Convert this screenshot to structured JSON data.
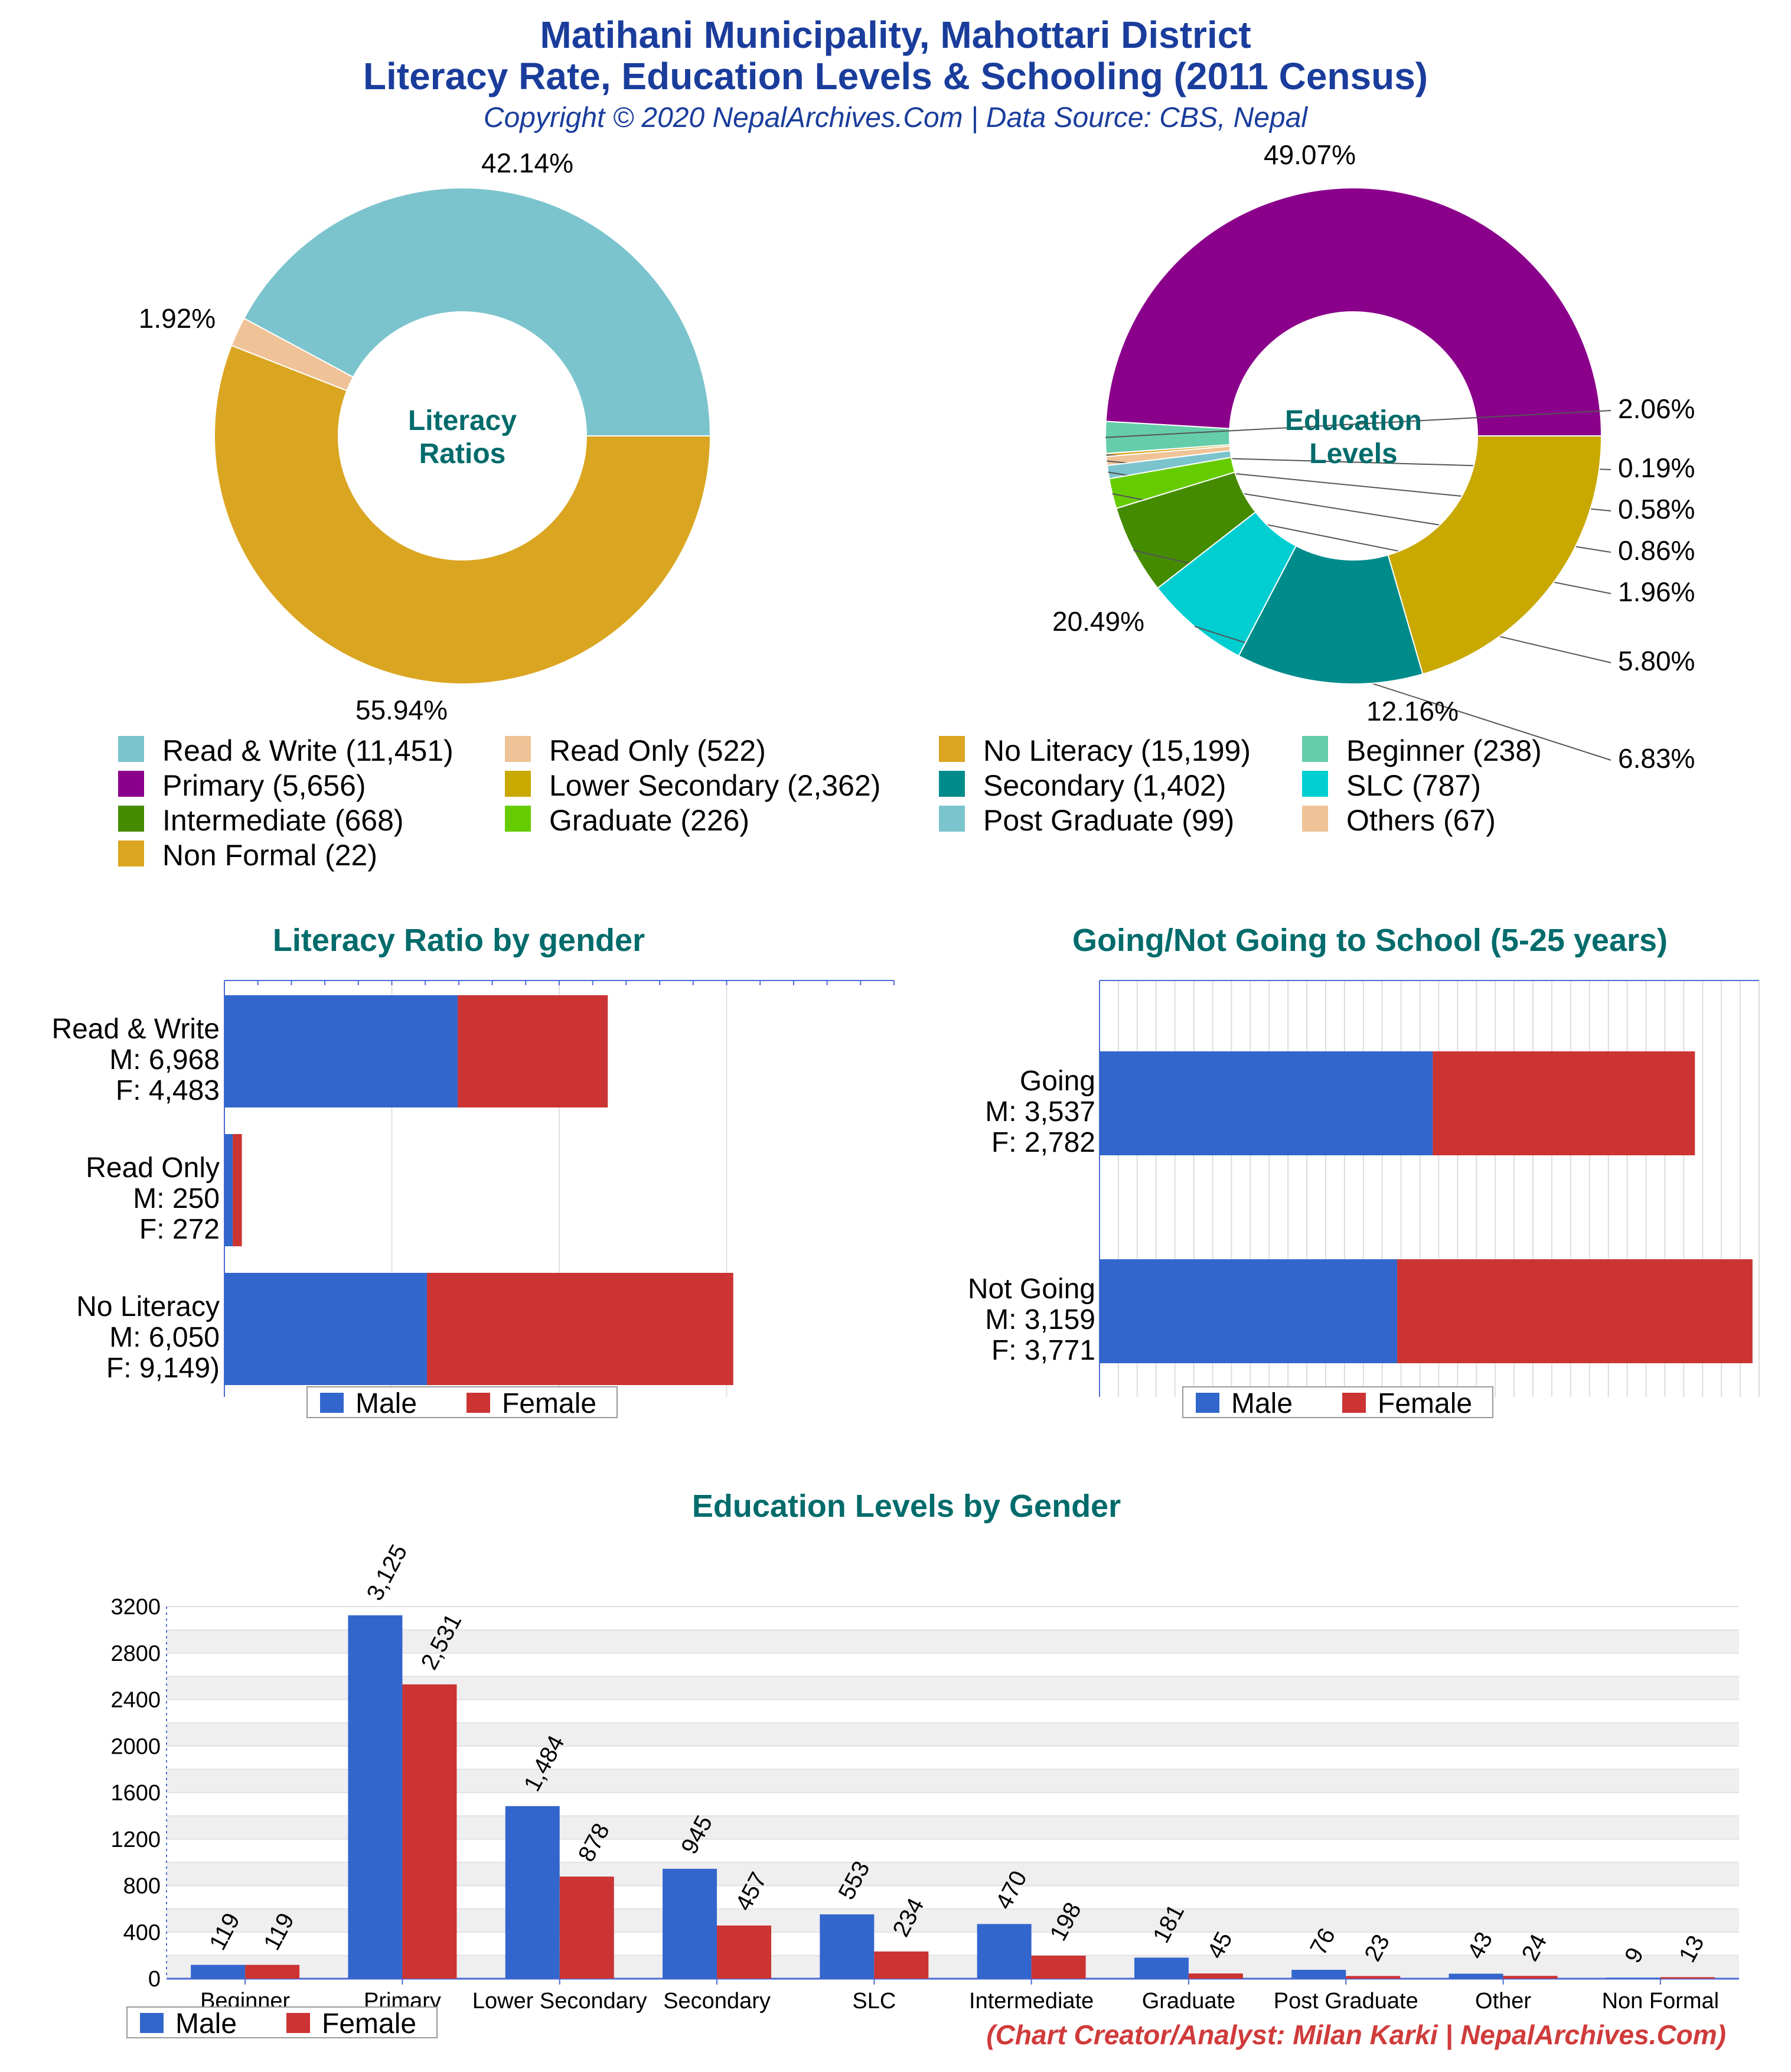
{
  "header": {
    "title_line1": "Matihani Municipality, Mahottari District",
    "title_line2": "Literacy Rate, Education Levels & Schooling (2011 Census)",
    "subtitle": "Copyright © 2020 NepalArchives.Com | Data Source: CBS, Nepal"
  },
  "footer": {
    "credit": "(Chart Creator/Analyst: Milan Karki | NepalArchives.Com)"
  },
  "chart_data": [
    {
      "type": "pie",
      "center_label": [
        "Literacy",
        "Ratios"
      ],
      "slices": [
        {
          "name": "Read & Write",
          "value": 11451,
          "percent_label": "42.14%",
          "color": "#7cc4cd"
        },
        {
          "name": "Read Only",
          "value": 522,
          "percent_label": "1.92%",
          "color": "#efc397"
        },
        {
          "name": "No Literacy",
          "value": 15199,
          "percent_label": "55.94%",
          "color": "#daa520"
        }
      ]
    },
    {
      "type": "pie",
      "center_label": [
        "Education",
        "Levels"
      ],
      "slices": [
        {
          "name": "Primary",
          "value": 5656,
          "percent_label": "49.07%",
          "color": "#8b008b"
        },
        {
          "name": "Beginner",
          "value": 238,
          "percent_label": "2.06%",
          "color": "#66cdaa"
        },
        {
          "name": "Non Formal",
          "value": 22,
          "percent_label": "0.19%",
          "color": "#daa520"
        },
        {
          "name": "Others",
          "value": 67,
          "percent_label": "0.58%",
          "color": "#efc397"
        },
        {
          "name": "Post Graduate",
          "value": 99,
          "percent_label": "0.86%",
          "color": "#7cc4cd"
        },
        {
          "name": "Graduate",
          "value": 226,
          "percent_label": "1.96%",
          "color": "#66cc00"
        },
        {
          "name": "Intermediate",
          "value": 668,
          "percent_label": "5.80%",
          "color": "#458b00"
        },
        {
          "name": "SLC",
          "value": 787,
          "percent_label": "6.83%",
          "color": "#00ced1"
        },
        {
          "name": "Secondary",
          "value": 1402,
          "percent_label": "12.16%",
          "color": "#008b8b"
        },
        {
          "name": "Lower Secondary",
          "value": 2362,
          "percent_label": "20.49%",
          "color": "#c9a800"
        }
      ]
    },
    {
      "type": "bar",
      "orientation": "horizontal",
      "stacked": true,
      "title": "Literacy Ratio by gender",
      "categories": [
        [
          "Read & Write",
          "M: 6,968",
          "F: 4,483"
        ],
        [
          "Read Only",
          "M: 250",
          "F: 272"
        ],
        [
          "No Literacy",
          "M: 6,050",
          "F: 9,149)"
        ]
      ],
      "series": [
        {
          "name": "Male",
          "values": [
            6968,
            250,
            6050
          ],
          "color": "#3366cc"
        },
        {
          "name": "Female",
          "values": [
            4483,
            272,
            9149
          ],
          "color": "#cc3333"
        }
      ],
      "xlim": [
        0,
        20000
      ]
    },
    {
      "type": "bar",
      "orientation": "horizontal",
      "stacked": true,
      "title": "Going/Not Going to School (5-25 years)",
      "categories": [
        [
          "Going",
          "M: 3,537",
          "F: 2,782"
        ],
        [
          "Not Going",
          "M: 3,159",
          "F: 3,771"
        ]
      ],
      "series": [
        {
          "name": "Male",
          "values": [
            3537,
            3159
          ],
          "color": "#3366cc"
        },
        {
          "name": "Female",
          "values": [
            2782,
            3771
          ],
          "color": "#cc3333"
        }
      ],
      "xlim": [
        0,
        7000
      ]
    },
    {
      "type": "bar",
      "title": "Education Levels by Gender",
      "categories": [
        "Beginner",
        "Primary",
        "Lower Secondary",
        "Secondary",
        "SLC",
        "Intermediate",
        "Graduate",
        "Post Graduate",
        "Other",
        "Non Formal"
      ],
      "series": [
        {
          "name": "Male",
          "values": [
            119,
            3125,
            1484,
            945,
            553,
            470,
            181,
            76,
            43,
            9
          ],
          "labels": [
            "119",
            "3,125",
            "1,484",
            "945",
            "553",
            "470",
            "181",
            "76",
            "43",
            "9"
          ],
          "color": "#3366cc"
        },
        {
          "name": "Female",
          "values": [
            119,
            2531,
            878,
            457,
            234,
            198,
            45,
            23,
            24,
            13
          ],
          "labels": [
            "119",
            "2,531",
            "878",
            "457",
            "234",
            "198",
            "45",
            "23",
            "24",
            "13"
          ],
          "color": "#cc3333"
        }
      ],
      "ylim": [
        0,
        3200
      ],
      "yticks": [
        "0",
        "400",
        "800",
        "1200",
        "1600",
        "2000",
        "2400",
        "2800",
        "3200"
      ]
    }
  ],
  "legends": {
    "pies": [
      [
        {
          "text": "Read & Write (11,451)",
          "color": "#7cc4cd"
        },
        {
          "text": "Read Only (522)",
          "color": "#efc397"
        },
        {
          "text": "No Literacy (15,199)",
          "color": "#daa520"
        },
        {
          "text": "Beginner (238)",
          "color": "#66cdaa"
        }
      ],
      [
        {
          "text": "Primary (5,656)",
          "color": "#8b008b"
        },
        {
          "text": "Lower Secondary (2,362)",
          "color": "#c9a800"
        },
        {
          "text": "Secondary (1,402)",
          "color": "#008b8b"
        },
        {
          "text": "SLC (787)",
          "color": "#00ced1"
        }
      ],
      [
        {
          "text": "Intermediate (668)",
          "color": "#458b00"
        },
        {
          "text": "Graduate (226)",
          "color": "#66cc00"
        },
        {
          "text": "Post Graduate (99)",
          "color": "#7cc4cd"
        },
        {
          "text": "Others (67)",
          "color": "#efc397"
        }
      ],
      [
        {
          "text": "Non Formal (22)",
          "color": "#daa520"
        }
      ]
    ],
    "gender": {
      "male": "Male",
      "female": "Female"
    }
  }
}
